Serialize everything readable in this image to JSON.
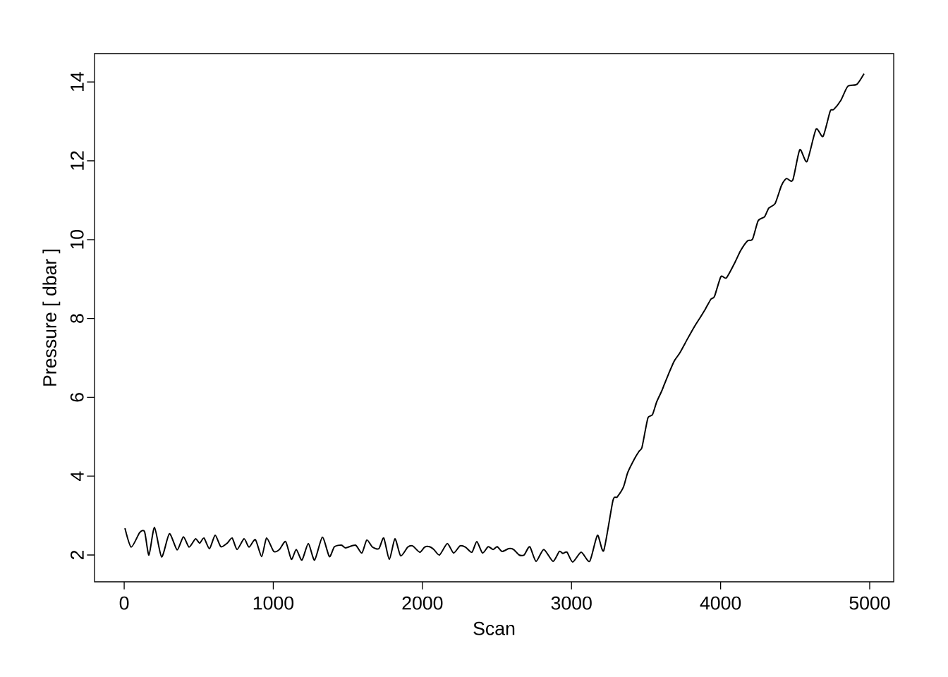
{
  "chart_data": {
    "type": "line",
    "xlabel": "Scan",
    "ylabel": "Pressure [ dbar ]",
    "color": "#000000",
    "x": [
      5,
      47,
      104,
      137,
      166,
      203,
      251,
      303,
      355,
      397,
      435,
      478,
      506,
      535,
      572,
      610,
      648,
      691,
      724,
      757,
      804,
      837,
      880,
      922,
      955,
      1003,
      1041,
      1083,
      1121,
      1154,
      1192,
      1235,
      1277,
      1329,
      1376,
      1410,
      1457,
      1485,
      1551,
      1594,
      1627,
      1665,
      1708,
      1741,
      1778,
      1816,
      1854,
      1902,
      1935,
      1982,
      2015,
      2048,
      2077,
      2115,
      2167,
      2209,
      2252,
      2289,
      2332,
      2365,
      2403,
      2441,
      2474,
      2502,
      2535,
      2578,
      2611,
      2649,
      2682,
      2720,
      2762,
      2814,
      2876,
      2918,
      2942,
      2970,
      3008,
      3065,
      3122,
      3174,
      3216,
      3278,
      3306,
      3349,
      3377,
      3424,
      3453,
      3472,
      3495,
      3514,
      3543,
      3571,
      3604,
      3623,
      3652,
      3689,
      3727,
      3779,
      3827,
      3864,
      3898,
      3935,
      3959,
      4002,
      4039,
      4096,
      4134,
      4181,
      4214,
      4252,
      4295,
      4323,
      4366,
      4408,
      4442,
      4484,
      4531,
      4579,
      4640,
      4687,
      4735,
      4758,
      4806,
      4853,
      4914,
      4962
    ],
    "values": [
      2.68,
      2.2,
      2.57,
      2.59,
      2.0,
      2.7,
      1.95,
      2.54,
      2.13,
      2.46,
      2.2,
      2.41,
      2.3,
      2.43,
      2.16,
      2.5,
      2.21,
      2.3,
      2.43,
      2.14,
      2.41,
      2.2,
      2.39,
      1.96,
      2.43,
      2.09,
      2.14,
      2.34,
      1.89,
      2.14,
      1.87,
      2.29,
      1.87,
      2.45,
      1.96,
      2.21,
      2.25,
      2.18,
      2.25,
      2.05,
      2.38,
      2.2,
      2.16,
      2.43,
      1.89,
      2.41,
      1.98,
      2.2,
      2.23,
      2.07,
      2.2,
      2.21,
      2.14,
      2.0,
      2.29,
      2.05,
      2.23,
      2.2,
      2.07,
      2.34,
      2.05,
      2.21,
      2.14,
      2.21,
      2.09,
      2.16,
      2.14,
      2.0,
      2.0,
      2.21,
      1.84,
      2.14,
      1.84,
      2.09,
      2.04,
      2.07,
      1.82,
      2.07,
      1.84,
      2.5,
      2.11,
      3.38,
      3.47,
      3.73,
      4.09,
      4.45,
      4.63,
      4.72,
      5.16,
      5.49,
      5.56,
      5.88,
      6.15,
      6.33,
      6.6,
      6.92,
      7.13,
      7.49,
      7.81,
      8.03,
      8.24,
      8.49,
      8.56,
      9.06,
      9.03,
      9.42,
      9.72,
      9.97,
      10.01,
      10.48,
      10.58,
      10.8,
      10.92,
      11.37,
      11.55,
      11.51,
      12.28,
      11.98,
      12.8,
      12.62,
      13.26,
      13.3,
      13.53,
      13.89,
      13.94,
      14.21
    ],
    "xlim": [
      -199,
      5161
    ],
    "ylim": [
      1.32,
      14.72
    ],
    "xticks": [
      0,
      1000,
      2000,
      3000,
      4000,
      5000
    ],
    "yticks": [
      2,
      4,
      6,
      8,
      10,
      12,
      14
    ]
  }
}
